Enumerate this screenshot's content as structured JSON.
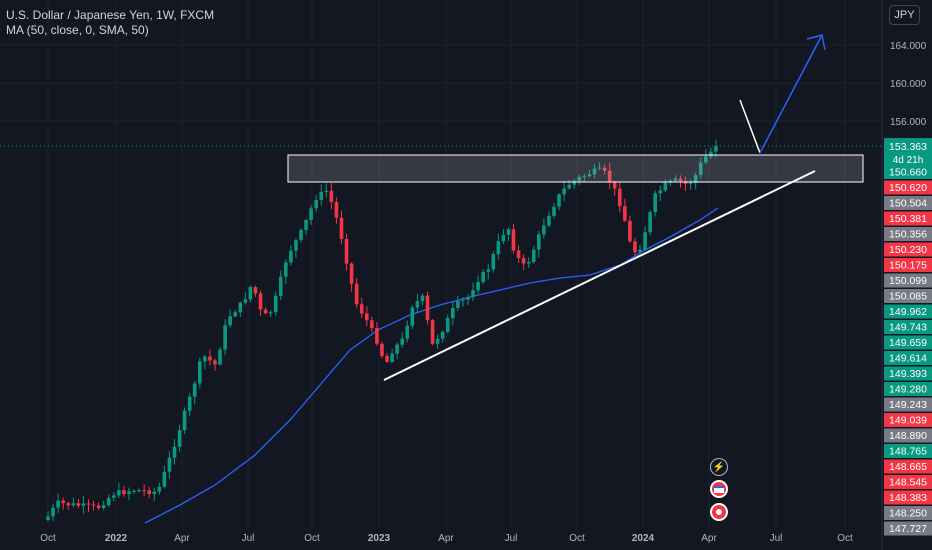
{
  "header": {
    "title": "U.S. Dollar / Japanese Yen, 1W, FXCM",
    "indicator": "MA (50, close, 0, SMA, 50)",
    "currency": "JPY"
  },
  "chart_data": {
    "type": "candlestick",
    "x_ticks": [
      "Oct",
      "2022",
      "Apr",
      "Jul",
      "Oct",
      "2023",
      "Apr",
      "Jul",
      "Oct",
      "2024",
      "Apr",
      "Jul",
      "Oct"
    ],
    "y_ticks": [
      "164.000",
      "160.000",
      "156.000"
    ],
    "ylim": [
      147.7,
      166.2
    ],
    "last_price": "153.363",
    "countdown": "4d 21h",
    "price_labels": [
      {
        "text": "150.660",
        "color": "#089981"
      },
      {
        "text": "150.620",
        "color": "#f23645"
      },
      {
        "text": "150.504",
        "color": "#787b86"
      },
      {
        "text": "150.381",
        "color": "#f23645"
      },
      {
        "text": "150.356",
        "color": "#787b86"
      },
      {
        "text": "150.230",
        "color": "#f23645"
      },
      {
        "text": "150.175",
        "color": "#f23645"
      },
      {
        "text": "150.099",
        "color": "#787b86"
      },
      {
        "text": "150.085",
        "color": "#787b86"
      },
      {
        "text": "149.962",
        "color": "#089981"
      },
      {
        "text": "149.743",
        "color": "#089981"
      },
      {
        "text": "149.659",
        "color": "#089981"
      },
      {
        "text": "149.614",
        "color": "#089981"
      },
      {
        "text": "149.393",
        "color": "#089981"
      },
      {
        "text": "149.280",
        "color": "#089981"
      },
      {
        "text": "149.243",
        "color": "#787b86"
      },
      {
        "text": "149.039",
        "color": "#f23645"
      },
      {
        "text": "148.890",
        "color": "#787b86"
      },
      {
        "text": "148.765",
        "color": "#089981"
      },
      {
        "text": "148.665",
        "color": "#f23645"
      },
      {
        "text": "148.545",
        "color": "#f23645"
      },
      {
        "text": "148.383",
        "color": "#f23645"
      },
      {
        "text": "148.250",
        "color": "#787b86"
      },
      {
        "text": "147.727",
        "color": "#787b86"
      }
    ],
    "colors": {
      "up": "#089981",
      "down": "#f23645",
      "ma": "#2962ff"
    }
  }
}
